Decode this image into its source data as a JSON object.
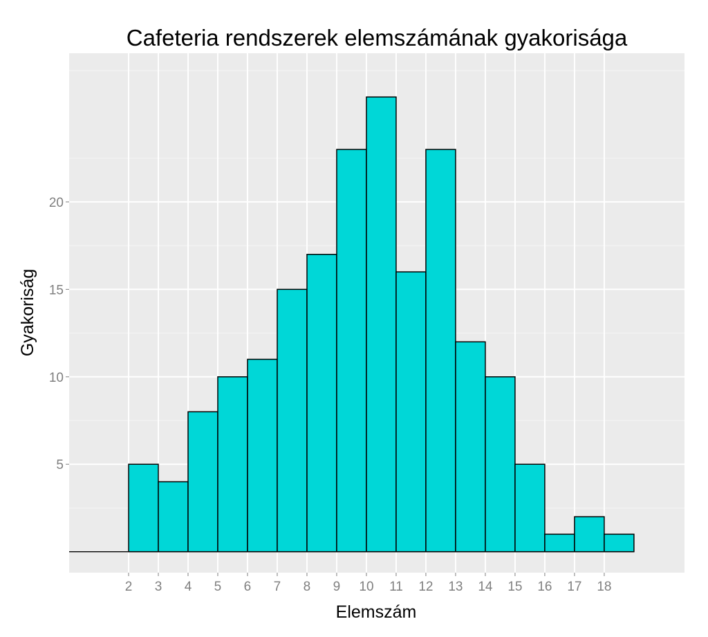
{
  "chart_data": {
    "type": "bar",
    "title": "Cafeteria rendszerek elemszámának gyakorisága",
    "xlabel": "Elemszám",
    "ylabel": "Gyakoriság",
    "categories": [
      "2",
      "3",
      "4",
      "5",
      "6",
      "7",
      "8",
      "9",
      "10",
      "11",
      "12",
      "13",
      "14",
      "15",
      "16",
      "17",
      "18"
    ],
    "values": [
      5,
      4,
      8,
      10,
      11,
      15,
      17,
      23,
      26,
      16,
      23,
      12,
      10,
      5,
      1,
      2,
      1
    ],
    "bin_starts": [
      2,
      3,
      4,
      5,
      6,
      7,
      8,
      9,
      10,
      11,
      12,
      13,
      14,
      15,
      16,
      17,
      18
    ],
    "bin_width": 1,
    "xlim": [
      0,
      20.7
    ],
    "ylim": [
      -1.2,
      28.5
    ],
    "x_ticks": [
      "2",
      "3",
      "4",
      "5",
      "6",
      "7",
      "8",
      "9",
      "10",
      "11",
      "12",
      "13",
      "14",
      "15",
      "16",
      "17",
      "18"
    ],
    "y_ticks": [
      "5",
      "10",
      "15",
      "20"
    ],
    "y_tick_values": [
      5,
      10,
      15,
      20
    ],
    "grid": true,
    "bar_fill": "#00d7d7",
    "bar_stroke": "#000000",
    "panel_background": "#ebebeb",
    "gridline_color": "#ffffff"
  }
}
